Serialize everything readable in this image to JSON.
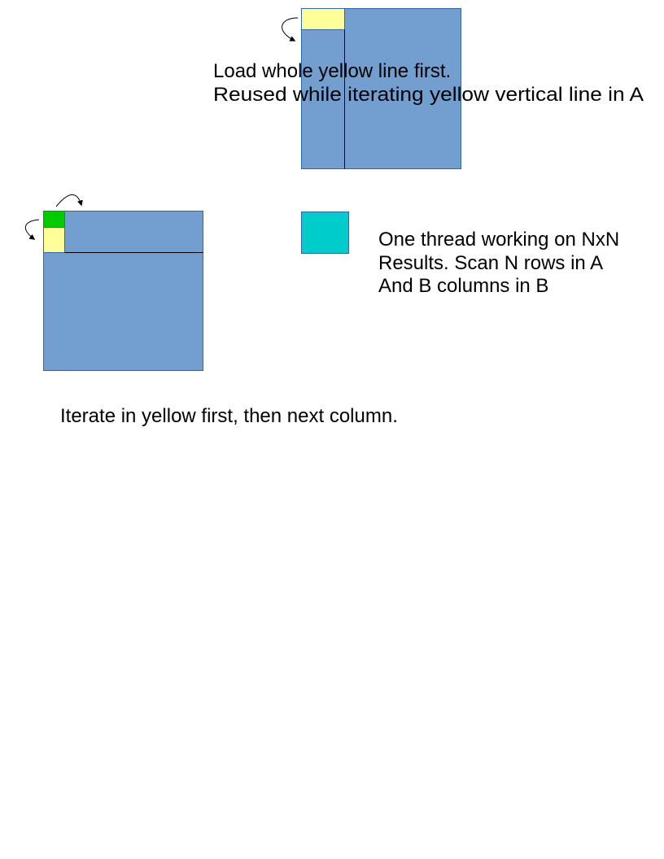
{
  "colors": {
    "matrix_block": "#729fcf",
    "matrix_border": "#3465a4",
    "highlight_yellow": "#ffff99",
    "current_green": "#00cc00",
    "result_cyan": "#00cccc"
  },
  "text": {
    "top_note_line1": "Load whole yellow line first.",
    "top_note_line2": "Reused while iterating yellow vertical line in A",
    "thread_note_line1": "One thread working on NxN",
    "thread_note_line2": "Results. Scan N rows in A",
    "thread_note_line3": "And B columns in B",
    "bottom_note": "Iterate in yellow first, then next column."
  }
}
